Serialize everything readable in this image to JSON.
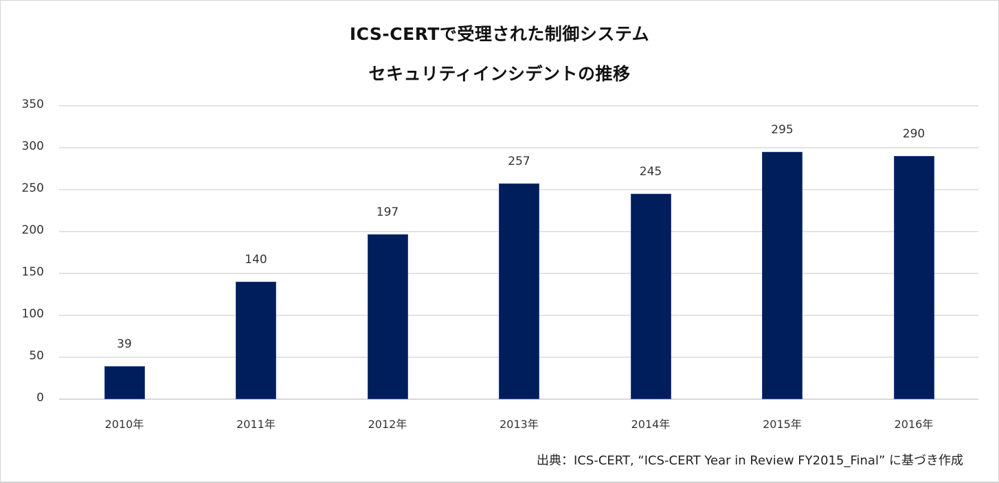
{
  "chart_data": {
    "type": "bar",
    "title": "ICS-CERTで受理された制御システムセキュリティインシデントの推移",
    "title_lines": [
      "ICS-CERTで受理された制御システム",
      "セキュリティインシデントの推移"
    ],
    "categories": [
      "2010年",
      "2011年",
      "2012年",
      "2013年",
      "2014年",
      "2015年",
      "2016年"
    ],
    "values": [
      39,
      140,
      197,
      257,
      245,
      295,
      290
    ],
    "data_labels": [
      "39",
      "140",
      "197",
      "257",
      "245",
      "295",
      "290"
    ],
    "xlabel": "",
    "ylabel": "",
    "ylim": [
      0,
      350
    ],
    "yticks": [
      "350",
      "300",
      "250",
      "200",
      "150",
      "100",
      "50",
      "0"
    ],
    "grid": true,
    "legend": "none",
    "bar_color": "#001d5c",
    "source_note": "出典：ICS-CERT, “ICS-CERT Year in Review FY2015_Final” に基づき作成"
  }
}
